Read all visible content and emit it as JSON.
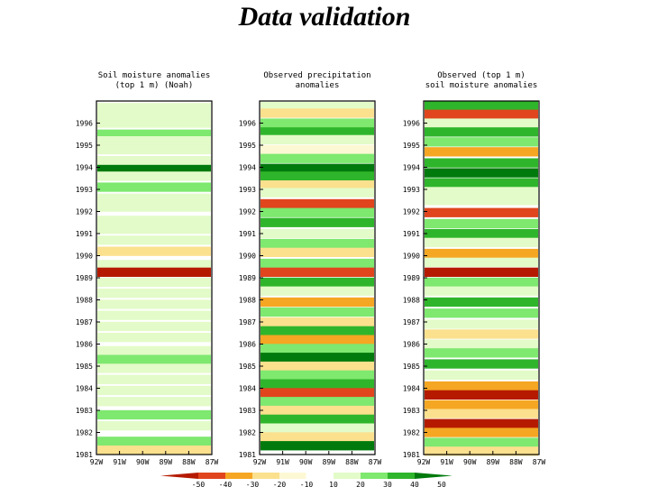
{
  "page": {
    "title": "Data validation"
  },
  "chart_data": {
    "type": "heatmap",
    "colorbar": {
      "levels": [
        "-50",
        "-40",
        "-30",
        "-20",
        "-10",
        "10",
        "20",
        "30",
        "40",
        "50"
      ],
      "colors": [
        "#b51a00",
        "#e0451d",
        "#f5a623",
        "#fbe08e",
        "#fdf8d4",
        "#ffffff",
        "#e3fbc8",
        "#7ee86f",
        "#2fb52b",
        "#007a0c"
      ]
    },
    "panels": [
      {
        "title": [
          "Soil moisture anomalies",
          "(top 1 m) (Noah)"
        ],
        "xlabels": [
          "92W",
          "91W",
          "90W",
          "89W",
          "88W",
          "87W"
        ],
        "ylabels": [
          "1996",
          "1995",
          "1994",
          "1993",
          "1992",
          "1991",
          "1990",
          "1989",
          "1988",
          "1987",
          "1986",
          "1985",
          "1984",
          "1983",
          "1982",
          "1981"
        ],
        "rows": [
          {
            "t": 1996.7,
            "v": 20
          },
          {
            "t": 1996.4,
            "v": 10
          },
          {
            "t": 1996.0,
            "v": 20
          },
          {
            "t": 1995.5,
            "v": 30
          },
          {
            "t": 1995.2,
            "v": 10
          },
          {
            "t": 1994.8,
            "v": 20
          },
          {
            "t": 1994.3,
            "v": 10
          },
          {
            "t": 1993.9,
            "v": 50
          },
          {
            "t": 1993.6,
            "v": 20
          },
          {
            "t": 1993.1,
            "v": 30
          },
          {
            "t": 1992.6,
            "v": 10
          },
          {
            "t": 1992.2,
            "v": 20
          },
          {
            "t": 1991.6,
            "v": 10
          },
          {
            "t": 1991.2,
            "v": 20
          },
          {
            "t": 1990.7,
            "v": 10
          },
          {
            "t": 1990.2,
            "v": -20
          },
          {
            "t": 1989.6,
            "v": 20
          },
          {
            "t": 1989.25,
            "v": -50
          },
          {
            "t": 1988.8,
            "v": 10
          },
          {
            "t": 1988.3,
            "v": 20
          },
          {
            "t": 1987.8,
            "v": 10
          },
          {
            "t": 1987.3,
            "v": 20
          },
          {
            "t": 1986.8,
            "v": 10
          },
          {
            "t": 1986.3,
            "v": 20
          },
          {
            "t": 1985.7,
            "v": 10
          },
          {
            "t": 1985.3,
            "v": 30
          },
          {
            "t": 1984.9,
            "v": 20
          },
          {
            "t": 1984.4,
            "v": 10
          },
          {
            "t": 1983.9,
            "v": 20
          },
          {
            "t": 1983.4,
            "v": 10
          },
          {
            "t": 1982.8,
            "v": 30
          },
          {
            "t": 1982.3,
            "v": 20
          },
          {
            "t": 1981.6,
            "v": 30
          },
          {
            "t": 1981.2,
            "v": -20
          }
        ]
      },
      {
        "title": [
          "Observed precipitation",
          "anomalies"
        ],
        "xlabels": [
          "92W",
          "91W",
          "90W",
          "89W",
          "88W",
          "87W"
        ],
        "ylabels": [
          "1996",
          "1995",
          "1994",
          "1993",
          "1992",
          "1991",
          "1990",
          "1989",
          "1988",
          "1987",
          "1986",
          "1985",
          "1984",
          "1983",
          "1982",
          "1981"
        ],
        "rows": [
          {
            "t": 1996.75,
            "v": 20
          },
          {
            "t": 1996.45,
            "v": -20
          },
          {
            "t": 1996.0,
            "v": 30
          },
          {
            "t": 1995.6,
            "v": 40
          },
          {
            "t": 1995.25,
            "v": 20
          },
          {
            "t": 1994.8,
            "v": -10
          },
          {
            "t": 1994.4,
            "v": 30
          },
          {
            "t": 1993.95,
            "v": 50
          },
          {
            "t": 1993.6,
            "v": 40
          },
          {
            "t": 1993.2,
            "v": -20
          },
          {
            "t": 1992.85,
            "v": 20
          },
          {
            "t": 1992.35,
            "v": -40
          },
          {
            "t": 1991.95,
            "v": 30
          },
          {
            "t": 1991.5,
            "v": 40
          },
          {
            "t": 1991.0,
            "v": 20
          },
          {
            "t": 1990.55,
            "v": 30
          },
          {
            "t": 1990.15,
            "v": -20
          },
          {
            "t": 1989.65,
            "v": 30
          },
          {
            "t": 1989.25,
            "v": -40
          },
          {
            "t": 1988.8,
            "v": 40
          },
          {
            "t": 1988.4,
            "v": 20
          },
          {
            "t": 1987.9,
            "v": -30
          },
          {
            "t": 1987.45,
            "v": 30
          },
          {
            "t": 1987.0,
            "v": -20
          },
          {
            "t": 1986.6,
            "v": 40
          },
          {
            "t": 1986.2,
            "v": -30
          },
          {
            "t": 1985.8,
            "v": 30
          },
          {
            "t": 1985.4,
            "v": 50
          },
          {
            "t": 1985.0,
            "v": -20
          },
          {
            "t": 1984.6,
            "v": 30
          },
          {
            "t": 1984.2,
            "v": 40
          },
          {
            "t": 1983.8,
            "v": -40
          },
          {
            "t": 1983.4,
            "v": 30
          },
          {
            "t": 1983.0,
            "v": -20
          },
          {
            "t": 1982.6,
            "v": 40
          },
          {
            "t": 1982.2,
            "v": 20
          },
          {
            "t": 1981.8,
            "v": -20
          },
          {
            "t": 1981.4,
            "v": 50
          }
        ]
      },
      {
        "title": [
          "Observed (top 1 m)",
          "soil moisture anomalies"
        ],
        "xlabels": [
          "92W",
          "91W",
          "90W",
          "89W",
          "88W",
          "87W"
        ],
        "ylabels": [
          "1996",
          "1995",
          "1994",
          "1993",
          "1992",
          "1991",
          "1990",
          "1989",
          "1988",
          "1987",
          "1986",
          "1985",
          "1984",
          "1983",
          "1982",
          "1981"
        ],
        "rows": [
          {
            "t": 1996.8,
            "v": 40
          },
          {
            "t": 1996.4,
            "v": -40
          },
          {
            "t": 1996.0,
            "v": 20
          },
          {
            "t": 1995.6,
            "v": 40
          },
          {
            "t": 1995.15,
            "v": 30
          },
          {
            "t": 1994.7,
            "v": -30
          },
          {
            "t": 1994.2,
            "v": 40
          },
          {
            "t": 1993.75,
            "v": 50
          },
          {
            "t": 1993.3,
            "v": 40
          },
          {
            "t": 1992.9,
            "v": 20
          },
          {
            "t": 1992.5,
            "v": 10
          },
          {
            "t": 1991.95,
            "v": -40
          },
          {
            "t": 1991.45,
            "v": 30
          },
          {
            "t": 1991.0,
            "v": 40
          },
          {
            "t": 1990.6,
            "v": 20
          },
          {
            "t": 1990.1,
            "v": -30
          },
          {
            "t": 1989.7,
            "v": 20
          },
          {
            "t": 1989.25,
            "v": -50
          },
          {
            "t": 1988.8,
            "v": 30
          },
          {
            "t": 1988.4,
            "v": 20
          },
          {
            "t": 1987.9,
            "v": 40
          },
          {
            "t": 1987.4,
            "v": 30
          },
          {
            "t": 1986.9,
            "v": 10
          },
          {
            "t": 1986.45,
            "v": -20
          },
          {
            "t": 1986.0,
            "v": 20
          },
          {
            "t": 1985.6,
            "v": 30
          },
          {
            "t": 1985.1,
            "v": 40
          },
          {
            "t": 1984.6,
            "v": 20
          },
          {
            "t": 1984.1,
            "v": -30
          },
          {
            "t": 1983.7,
            "v": -50
          },
          {
            "t": 1983.25,
            "v": -30
          },
          {
            "t": 1982.85,
            "v": -20
          },
          {
            "t": 1982.4,
            "v": -50
          },
          {
            "t": 1982.0,
            "v": -30
          },
          {
            "t": 1981.55,
            "v": 30
          },
          {
            "t": 1981.15,
            "v": -20
          }
        ]
      }
    ]
  }
}
